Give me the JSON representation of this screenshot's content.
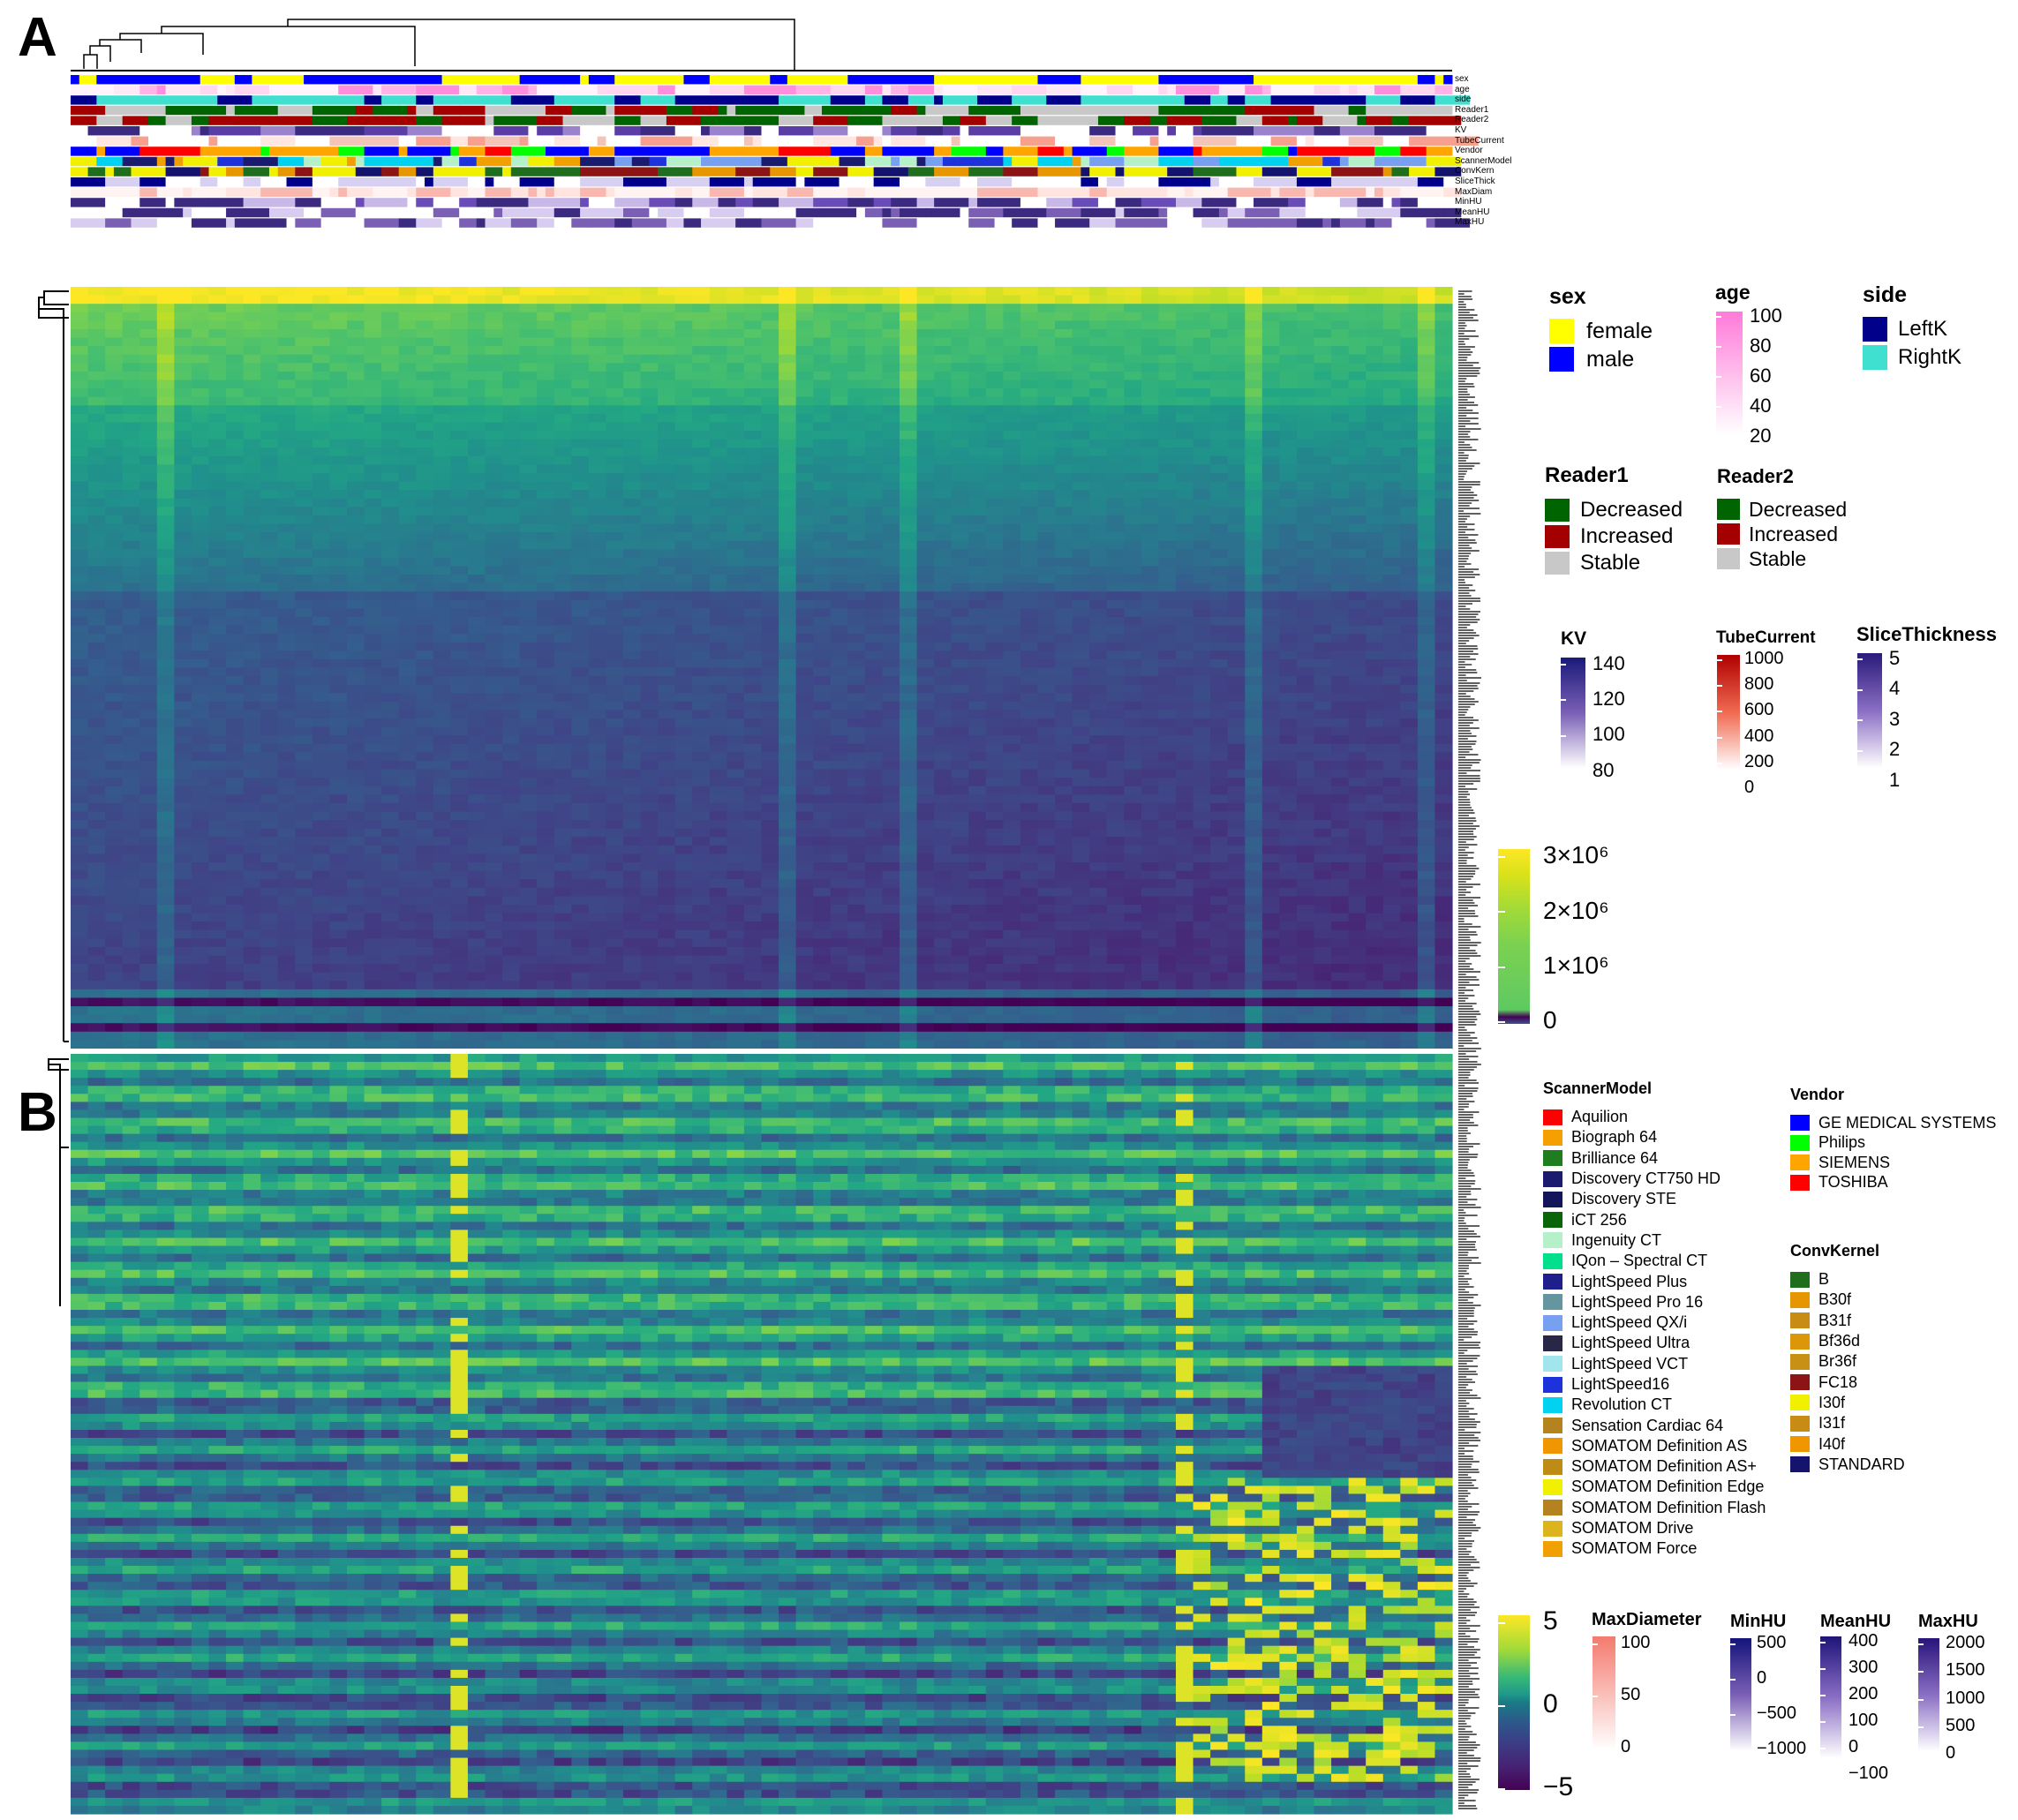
{
  "panels": {
    "a": "A",
    "b": "B"
  },
  "annotation_tracks": [
    "sex",
    "age",
    "side",
    "Reader1",
    "Reader2",
    "KV",
    "TubeCurrent",
    "Vendor",
    "ScannerModel",
    "ConvKern",
    "SliceThick",
    "MaxDiam",
    "MinHU",
    "MeanHU",
    "MaxHU"
  ],
  "legends": {
    "sex": {
      "title": "sex",
      "items": [
        {
          "label": "female",
          "color": "#ffff00"
        },
        {
          "label": "male",
          "color": "#0000ff"
        }
      ]
    },
    "age": {
      "title": "age",
      "ticks": [
        "100",
        "80",
        "60",
        "40",
        "20"
      ],
      "colors": [
        "#ff7ad9",
        "#ffffff"
      ]
    },
    "side": {
      "title": "side",
      "items": [
        {
          "label": "LeftK",
          "color": "#00008b"
        },
        {
          "label": "RightK",
          "color": "#40e0d0"
        }
      ]
    },
    "reader1": {
      "title": "Reader1",
      "items": [
        {
          "label": "Decreased",
          "color": "#006400"
        },
        {
          "label": "Increased",
          "color": "#a50000"
        },
        {
          "label": "Stable",
          "color": "#c8c8c8"
        }
      ]
    },
    "reader2": {
      "title": "Reader2",
      "items": [
        {
          "label": "Decreased",
          "color": "#006400"
        },
        {
          "label": "Increased",
          "color": "#a50000"
        },
        {
          "label": "Stable",
          "color": "#c8c8c8"
        }
      ]
    },
    "kv": {
      "title": "KV",
      "ticks": [
        "140",
        "120",
        "100",
        "80"
      ],
      "colors": [
        "#1a1a7a",
        "#ffffff"
      ]
    },
    "tubecurrent": {
      "title": "TubeCurrent",
      "ticks": [
        "1000",
        "800",
        "600",
        "400",
        "200",
        "0"
      ],
      "colors": [
        "#b00000",
        "#ffffff"
      ]
    },
    "slicethickness": {
      "title": "SliceThickness",
      "ticks": [
        "5",
        "4",
        "3",
        "2",
        "1"
      ],
      "colors": [
        "#2a1a7a",
        "#ffffff"
      ]
    },
    "heat_a": {
      "ticks": [
        "3×10⁶",
        "2×10⁶",
        "1×10⁶",
        "0"
      ]
    },
    "scannermodel": {
      "title": "ScannerModel",
      "items": [
        {
          "label": "Aquilion",
          "color": "#ff0000"
        },
        {
          "label": "Biograph 64",
          "color": "#f5a000"
        },
        {
          "label": "Brilliance 64",
          "color": "#1e7d1e"
        },
        {
          "label": "Discovery CT750 HD",
          "color": "#1a1a6e"
        },
        {
          "label": "Discovery STE",
          "color": "#14145a"
        },
        {
          "label": "iCT 256",
          "color": "#0a640a"
        },
        {
          "label": "Ingenuity CT",
          "color": "#b4f0c8"
        },
        {
          "label": "IQon – Spectral CT",
          "color": "#00e08c"
        },
        {
          "label": "LightSpeed Plus",
          "color": "#1e1e8c"
        },
        {
          "label": "LightSpeed Pro 16",
          "color": "#6496a0"
        },
        {
          "label": "LightSpeed QX/i",
          "color": "#78a0f0"
        },
        {
          "label": "LightSpeed Ultra",
          "color": "#282846"
        },
        {
          "label": "LightSpeed VCT",
          "color": "#a0e6ec"
        },
        {
          "label": "LightSpeed16",
          "color": "#1e32dc"
        },
        {
          "label": "Revolution CT",
          "color": "#00d2f0"
        },
        {
          "label": "Sensation Cardiac 64",
          "color": "#b4821e"
        },
        {
          "label": "SOMATOM Definition AS",
          "color": "#f09600"
        },
        {
          "label": "SOMATOM Definition AS+",
          "color": "#be8c14"
        },
        {
          "label": "SOMATOM Definition Edge",
          "color": "#f0f000"
        },
        {
          "label": "SOMATOM Definition Flash",
          "color": "#b4821e"
        },
        {
          "label": "SOMATOM Drive",
          "color": "#dcb41e"
        },
        {
          "label": "SOMATOM Force",
          "color": "#f0a000"
        }
      ]
    },
    "vendor": {
      "title": "Vendor",
      "items": [
        {
          "label": "GE MEDICAL SYSTEMS",
          "color": "#0000ff"
        },
        {
          "label": "Philips",
          "color": "#00ff00"
        },
        {
          "label": "SIEMENS",
          "color": "#ffa500"
        },
        {
          "label": "TOSHIBA",
          "color": "#ff0000"
        }
      ]
    },
    "convkernel": {
      "title": "ConvKernel",
      "items": [
        {
          "label": "B",
          "color": "#1e6e1e"
        },
        {
          "label": "B30f",
          "color": "#e69600"
        },
        {
          "label": "B31f",
          "color": "#c88c14"
        },
        {
          "label": "Bf36d",
          "color": "#dc960a"
        },
        {
          "label": "Br36f",
          "color": "#c89014"
        },
        {
          "label": "FC18",
          "color": "#8c1414"
        },
        {
          "label": "I30f",
          "color": "#f0f000"
        },
        {
          "label": "I31f",
          "color": "#c88c14"
        },
        {
          "label": "I40f",
          "color": "#f09600"
        },
        {
          "label": "STANDARD",
          "color": "#14146e"
        }
      ]
    },
    "heat_b": {
      "ticks": [
        "5",
        "0",
        "−5"
      ]
    },
    "maxdiameter": {
      "title": "MaxDiameter",
      "ticks": [
        "100",
        "50",
        "0"
      ],
      "colors": [
        "#f47a6e",
        "#ffffff"
      ]
    },
    "minhu": {
      "title": "MinHU",
      "ticks": [
        "500",
        "0",
        "−500",
        "−1000"
      ],
      "colors": [
        "#14147a",
        "#ffffff"
      ]
    },
    "meanhu": {
      "title": "MeanHU",
      "ticks": [
        "400",
        "300",
        "200",
        "100",
        "0",
        "−100"
      ],
      "colors": [
        "#1e1478",
        "#ffffff"
      ]
    },
    "maxhu": {
      "title": "MaxHU",
      "ticks": [
        "2000",
        "1500",
        "1000",
        "500",
        "0"
      ],
      "colors": [
        "#28147a",
        "#ffffff"
      ]
    }
  },
  "chart_data": [
    {
      "type": "heatmap",
      "panel": "A",
      "scale_ticks": [
        "0",
        "1×10⁶",
        "2×10⁶",
        "3×10⁶"
      ],
      "value_range": [
        0,
        3000000
      ],
      "palette": "viridis"
    },
    {
      "type": "heatmap",
      "panel": "B",
      "scale_ticks": [
        "−5",
        "0",
        "5"
      ],
      "value_range": [
        -5,
        5
      ],
      "palette": "viridis"
    }
  ]
}
